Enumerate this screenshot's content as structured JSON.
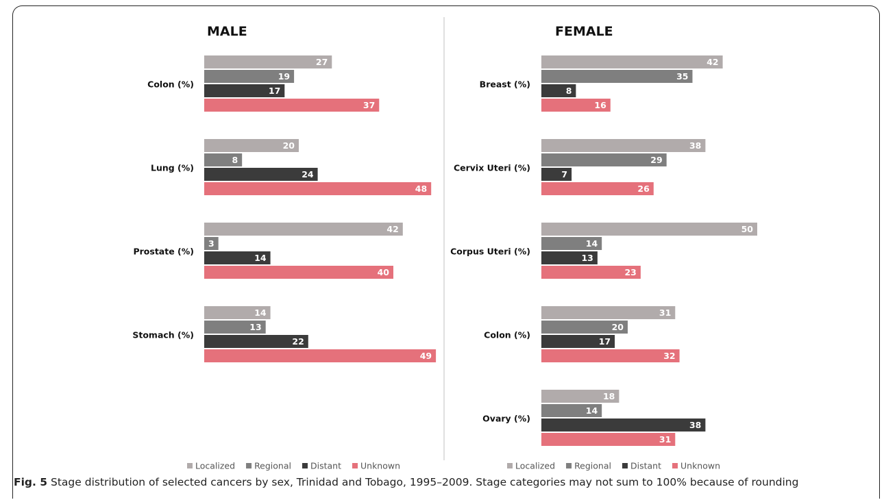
{
  "caption": {
    "label": "Fig. 5",
    "text": "Stage distribution of selected cancers by sex, Trinidad and Tobago, 1995–2009. Stage categories may not sum to 100% because of rounding"
  },
  "colors": {
    "Localized": "#b1abab",
    "Regional": "#7f7f7f",
    "Distant": "#3b3b3b",
    "Unknown": "#e5717b"
  },
  "chart_data": [
    {
      "type": "bar",
      "orientation": "horizontal",
      "title": "MALE",
      "categories": [
        "Colon (%)",
        "Lung (%)",
        "Prostate (%)",
        "Stomach (%)"
      ],
      "series": [
        {
          "name": "Localized",
          "values": [
            27,
            20,
            42,
            14
          ]
        },
        {
          "name": "Regional",
          "values": [
            19,
            8,
            3,
            13
          ]
        },
        {
          "name": "Distant",
          "values": [
            17,
            24,
            14,
            22
          ]
        },
        {
          "name": "Unknown",
          "values": [
            37,
            48,
            40,
            49
          ]
        }
      ],
      "legend": [
        "Localized",
        "Regional",
        "Distant",
        "Unknown"
      ],
      "legend_position": "bottom",
      "grid": false
    },
    {
      "type": "bar",
      "orientation": "horizontal",
      "title": "FEMALE",
      "categories": [
        "Breast (%)",
        "Cervix Uteri (%)",
        "Corpus Uteri (%)",
        "Colon (%)",
        "Ovary (%)"
      ],
      "series": [
        {
          "name": "Localized",
          "values": [
            42,
            38,
            50,
            31,
            18
          ]
        },
        {
          "name": "Regional",
          "values": [
            35,
            29,
            14,
            20,
            14
          ]
        },
        {
          "name": "Distant",
          "values": [
            8,
            7,
            13,
            17,
            38
          ]
        },
        {
          "name": "Unknown",
          "values": [
            16,
            26,
            23,
            32,
            31
          ]
        }
      ],
      "legend": [
        "Localized",
        "Regional",
        "Distant",
        "Unknown"
      ],
      "legend_position": "bottom",
      "grid": false
    }
  ]
}
